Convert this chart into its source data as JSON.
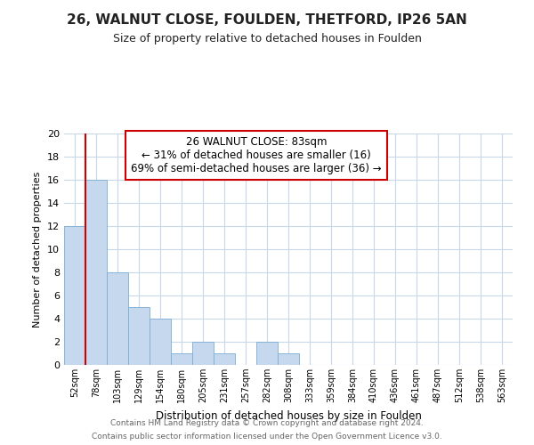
{
  "title": "26, WALNUT CLOSE, FOULDEN, THETFORD, IP26 5AN",
  "subtitle": "Size of property relative to detached houses in Foulden",
  "xlabel": "Distribution of detached houses by size in Foulden",
  "ylabel": "Number of detached properties",
  "bar_labels": [
    "52sqm",
    "78sqm",
    "103sqm",
    "129sqm",
    "154sqm",
    "180sqm",
    "205sqm",
    "231sqm",
    "257sqm",
    "282sqm",
    "308sqm",
    "333sqm",
    "359sqm",
    "384sqm",
    "410sqm",
    "436sqm",
    "461sqm",
    "487sqm",
    "512sqm",
    "538sqm",
    "563sqm"
  ],
  "bar_values": [
    12,
    16,
    8,
    5,
    4,
    1,
    2,
    1,
    0,
    2,
    1,
    0,
    0,
    0,
    0,
    0,
    0,
    0,
    0,
    0,
    0
  ],
  "bar_color": "#c5d8ed",
  "bar_edge_color": "#7baed4",
  "vline_color": "#cc0000",
  "vline_x_index": 1,
  "annotation_title": "26 WALNUT CLOSE: 83sqm",
  "annotation_line1": "← 31% of detached houses are smaller (16)",
  "annotation_line2": "69% of semi-detached houses are larger (36) →",
  "annotation_box_color": "#ffffff",
  "annotation_box_edgecolor": "#cc0000",
  "ylim": [
    0,
    20
  ],
  "yticks": [
    0,
    2,
    4,
    6,
    8,
    10,
    12,
    14,
    16,
    18,
    20
  ],
  "footer_line1": "Contains HM Land Registry data © Crown copyright and database right 2024.",
  "footer_line2": "Contains public sector information licensed under the Open Government Licence v3.0.",
  "bg_color": "#ffffff",
  "grid_color": "#c8d8e8"
}
